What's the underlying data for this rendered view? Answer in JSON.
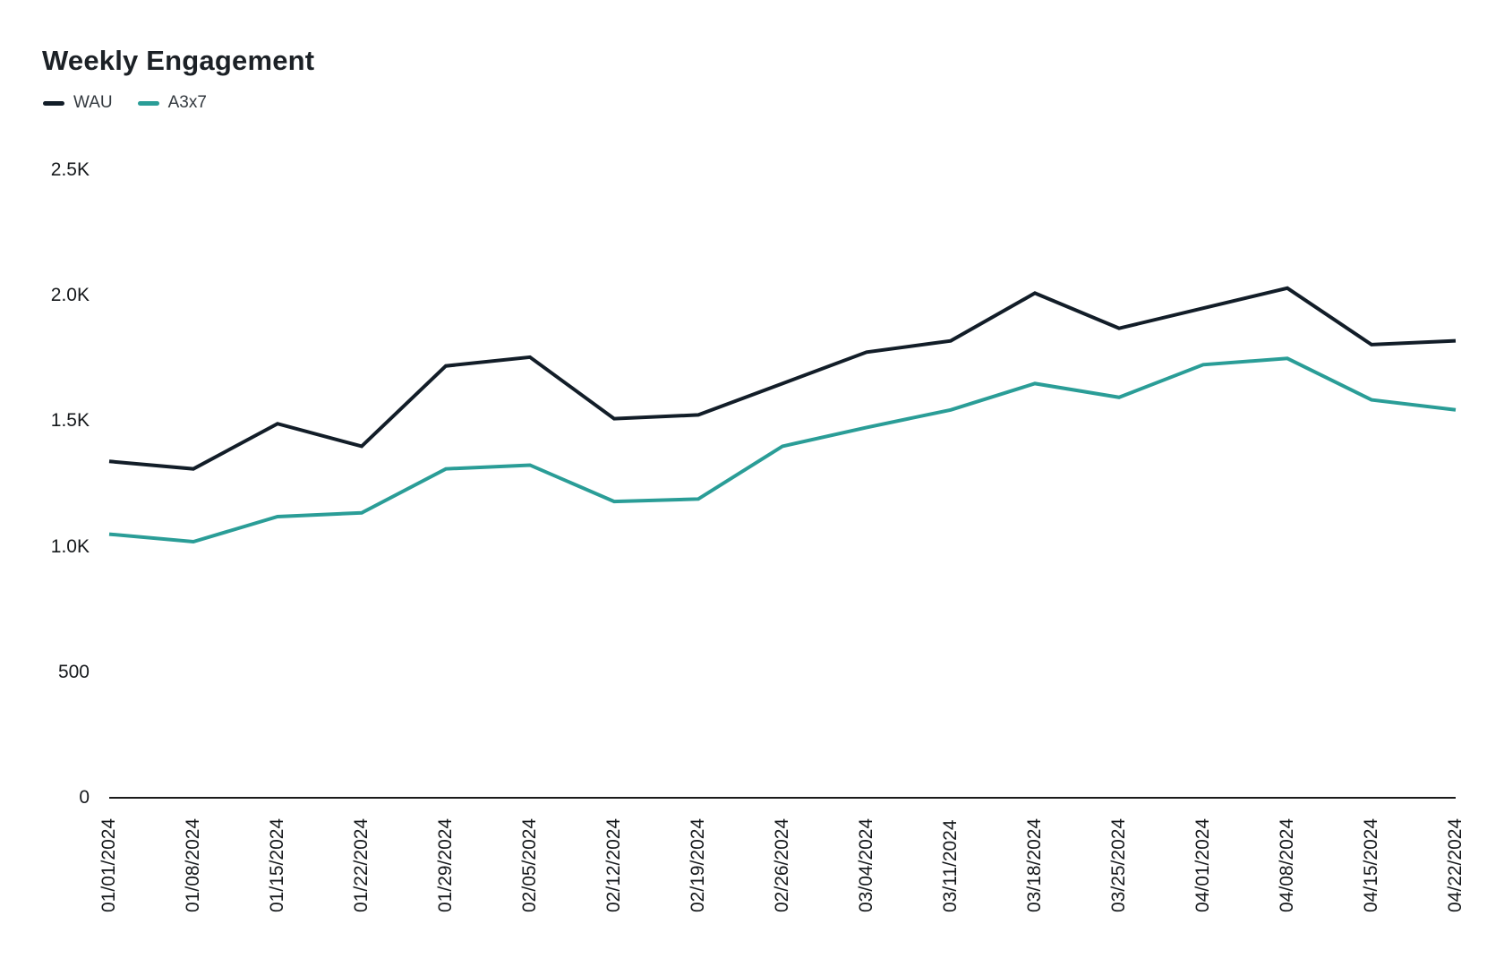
{
  "chart_data": {
    "type": "line",
    "title": "Weekly Engagement",
    "xlabel": "",
    "ylabel": "",
    "grid": false,
    "legend_position": "top-left",
    "axis_color": "#1a1a1a",
    "ylim": [
      0,
      2500
    ],
    "y_ticks": [
      {
        "value": 0,
        "label": "0"
      },
      {
        "value": 500,
        "label": "500"
      },
      {
        "value": 1000,
        "label": "1.0K"
      },
      {
        "value": 1500,
        "label": "1.5K"
      },
      {
        "value": 2000,
        "label": "2.0K"
      },
      {
        "value": 2500,
        "label": "2.5K"
      }
    ],
    "categories": [
      "01/01/2024",
      "01/08/2024",
      "01/15/2024",
      "01/22/2024",
      "01/29/2024",
      "02/05/2024",
      "02/12/2024",
      "02/19/2024",
      "02/26/2024",
      "03/04/2024",
      "03/11/2024",
      "03/18/2024",
      "03/25/2024",
      "04/01/2024",
      "04/08/2024",
      "04/15/2024",
      "04/22/2024"
    ],
    "series": [
      {
        "name": "WAU",
        "color": "#121d28",
        "values": [
          1340,
          1310,
          1490,
          1400,
          1720,
          1755,
          1510,
          1525,
          1650,
          1775,
          1820,
          2010,
          1870,
          1950,
          2030,
          1805,
          1820
        ]
      },
      {
        "name": "A3x7",
        "color": "#2a9d97",
        "values": [
          1050,
          1020,
          1120,
          1135,
          1310,
          1325,
          1180,
          1190,
          1400,
          1475,
          1545,
          1650,
          1595,
          1725,
          1750,
          1585,
          1545
        ]
      }
    ]
  }
}
